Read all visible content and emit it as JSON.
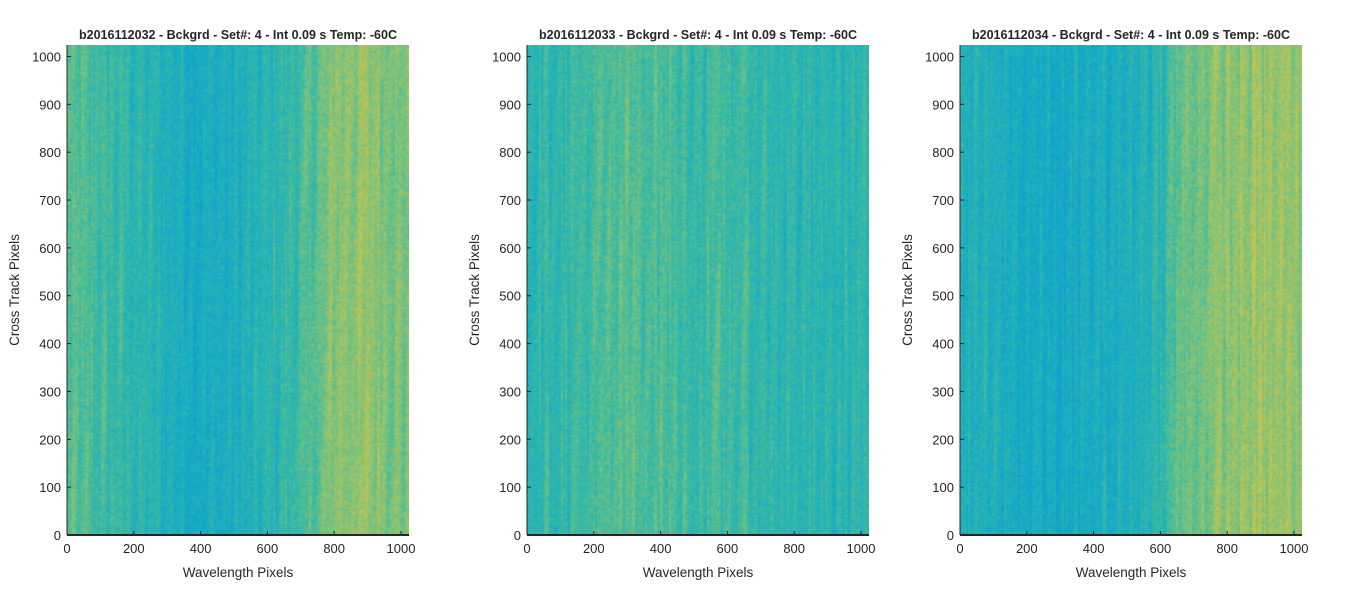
{
  "figure": {
    "panels": [
      {
        "title": "b2016112032 - Bckgrd - Set#: 4 - Int 0.09 s Temp: -60C",
        "xlabel": "Wavelength Pixels",
        "ylabel": "Cross Track Pixels",
        "colormap": "parula"
      },
      {
        "title": "b2016112033 - Bckgrd - Set#: 4 - Int 0.09 s Temp: -60C",
        "xlabel": "Wavelength Pixels",
        "ylabel": "Cross Track Pixels",
        "colormap": "parula"
      },
      {
        "title": "b2016112034 - Bckgrd - Set#: 4 - Int 0.09 s Temp: -60C",
        "xlabel": "Wavelength Pixels",
        "ylabel": "Cross Track Pixels",
        "colormap": "parula"
      }
    ]
  },
  "chart_data": [
    {
      "type": "heatmap",
      "title": "b2016112032 - Bckgrd - Set#: 4 - Int 0.09 s Temp: -60C",
      "xlabel": "Wavelength Pixels",
      "ylabel": "Cross Track Pixels",
      "xlim": [
        0,
        1024
      ],
      "ylim": [
        0,
        1024
      ],
      "xticks": [
        0,
        200,
        400,
        600,
        800,
        1000
      ],
      "yticks": [
        0,
        100,
        200,
        300,
        400,
        500,
        600,
        700,
        800,
        900,
        1000
      ],
      "colormap": "parula",
      "grid": false,
      "column_profile": {
        "x": [
          0,
          100,
          200,
          300,
          400,
          500,
          600,
          700,
          760,
          800,
          900,
          1000,
          1024
        ],
        "relative_level": [
          0.58,
          0.52,
          0.45,
          0.38,
          0.33,
          0.35,
          0.42,
          0.52,
          0.62,
          0.72,
          0.74,
          0.68,
          0.66
        ]
      }
    },
    {
      "type": "heatmap",
      "title": "b2016112033 - Bckgrd - Set#: 4 - Int 0.09 s Temp: -60C",
      "xlabel": "Wavelength Pixels",
      "ylabel": "Cross Track Pixels",
      "xlim": [
        0,
        1024
      ],
      "ylim": [
        0,
        1024
      ],
      "xticks": [
        0,
        200,
        400,
        600,
        800,
        1000
      ],
      "yticks": [
        0,
        100,
        200,
        300,
        400,
        500,
        600,
        700,
        800,
        900,
        1000
      ],
      "colormap": "parula",
      "grid": false,
      "column_profile": {
        "x": [
          0,
          100,
          200,
          300,
          400,
          500,
          600,
          700,
          800,
          900,
          1000,
          1024
        ],
        "relative_level": [
          0.45,
          0.48,
          0.52,
          0.58,
          0.56,
          0.5,
          0.52,
          0.47,
          0.45,
          0.42,
          0.46,
          0.46
        ]
      }
    },
    {
      "type": "heatmap",
      "title": "b2016112034 - Bckgrd - Set#: 4 - Int 0.09 s Temp: -60C",
      "xlabel": "Wavelength Pixels",
      "ylabel": "Cross Track Pixels",
      "xlim": [
        0,
        1024
      ],
      "ylim": [
        0,
        1024
      ],
      "xticks": [
        0,
        200,
        400,
        600,
        800,
        1000
      ],
      "yticks": [
        0,
        100,
        200,
        300,
        400,
        500,
        600,
        700,
        800,
        900,
        1000
      ],
      "colormap": "parula",
      "grid": false,
      "column_profile": {
        "x": [
          0,
          100,
          200,
          300,
          400,
          500,
          600,
          650,
          700,
          800,
          900,
          1000,
          1024
        ],
        "relative_level": [
          0.4,
          0.36,
          0.32,
          0.3,
          0.33,
          0.36,
          0.45,
          0.6,
          0.66,
          0.72,
          0.76,
          0.74,
          0.73
        ]
      }
    }
  ]
}
